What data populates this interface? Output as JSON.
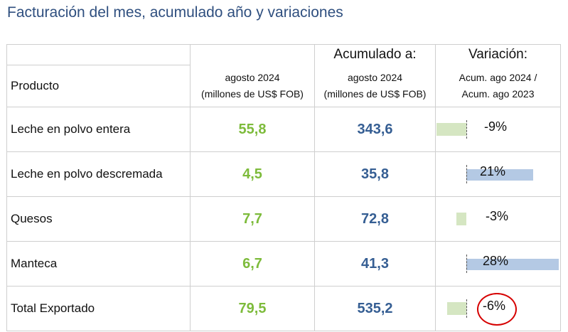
{
  "title": "Facturación del mes, acumulado año y variaciones",
  "table": {
    "header_top": {
      "acumulado": "Acumulado a:",
      "variacion": "Variación:"
    },
    "header_sub": {
      "producto": "Producto",
      "mes_line1": "agosto 2024",
      "mes_line2": "(millones de US$ FOB)",
      "acum_line1": "agosto 2024",
      "acum_line2": "(millones de US$ FOB)",
      "var_line1": "Acum. ago 2024 /",
      "var_line2": "Acum. ago 2023"
    },
    "rows": [
      {
        "producto": "Leche en polvo entera",
        "mes": "55,8",
        "acumulado": "343,6",
        "variacion": "-9%",
        "variacion_value": -9
      },
      {
        "producto": "Leche en polvo descremada",
        "mes": "4,5",
        "acumulado": "35,8",
        "variacion": "21%",
        "variacion_value": 21
      },
      {
        "producto": "Quesos",
        "mes": "7,7",
        "acumulado": "72,8",
        "variacion": "-3%",
        "variacion_value": -3
      },
      {
        "producto": "Manteca",
        "mes": "6,7",
        "acumulado": "41,3",
        "variacion": "28%",
        "variacion_value": 28
      },
      {
        "producto": "Total Exportado",
        "mes": "79,5",
        "acumulado": "535,2",
        "variacion": "-6%",
        "variacion_value": -6
      }
    ]
  },
  "colors": {
    "title": "#2f4f7f",
    "mes_values": "#7dbb3b",
    "acum_values": "#355e93",
    "negative_bar": "#d5e6c2",
    "positive_bar": "#b4c9e4",
    "highlight_circle": "#d60000"
  },
  "highlight": {
    "row": "Total Exportado",
    "shape": "red-circle"
  }
}
